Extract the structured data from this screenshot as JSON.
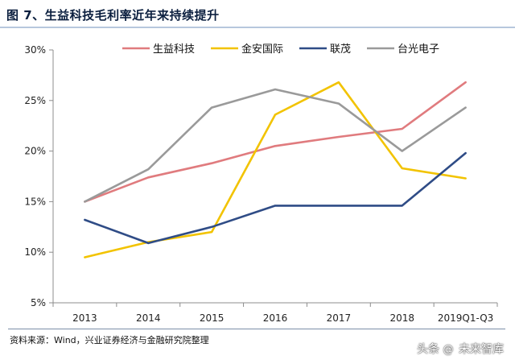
{
  "title": "图 7、生益科技毛利率近年来持续提升",
  "source": "资料来源：Wind，兴业证券经济与金融研究院整理",
  "watermark": {
    "prefix": "头条",
    "handle": "未来智库",
    "icon": "at-sign-icon"
  },
  "chart_data": {
    "type": "line",
    "title": "图 7、生益科技毛利率近年来持续提升",
    "xlabel": "",
    "ylabel": "",
    "categories": [
      "2013",
      "2014",
      "2015",
      "2016",
      "2017",
      "2018",
      "2019Q1-Q3"
    ],
    "y_ticks": [
      "5%",
      "10%",
      "15%",
      "20%",
      "25%",
      "30%"
    ],
    "ylim": [
      5,
      30
    ],
    "grid": false,
    "legend_position": "top",
    "series": [
      {
        "name": "生益科技",
        "color": "#e07b7e",
        "values": [
          15.0,
          17.4,
          18.8,
          20.5,
          21.4,
          22.2,
          26.8
        ]
      },
      {
        "name": "金安国际",
        "color": "#f2c300",
        "values": [
          9.5,
          11.0,
          12.0,
          23.6,
          26.8,
          18.3,
          17.3
        ]
      },
      {
        "name": "联茂",
        "color": "#2f4c86",
        "values": [
          13.2,
          10.9,
          12.5,
          14.6,
          14.6,
          14.6,
          19.8
        ]
      },
      {
        "name": "台光电子",
        "color": "#9a9a9a",
        "values": [
          15.0,
          18.2,
          24.3,
          26.1,
          24.7,
          20.0,
          24.3
        ]
      }
    ]
  }
}
